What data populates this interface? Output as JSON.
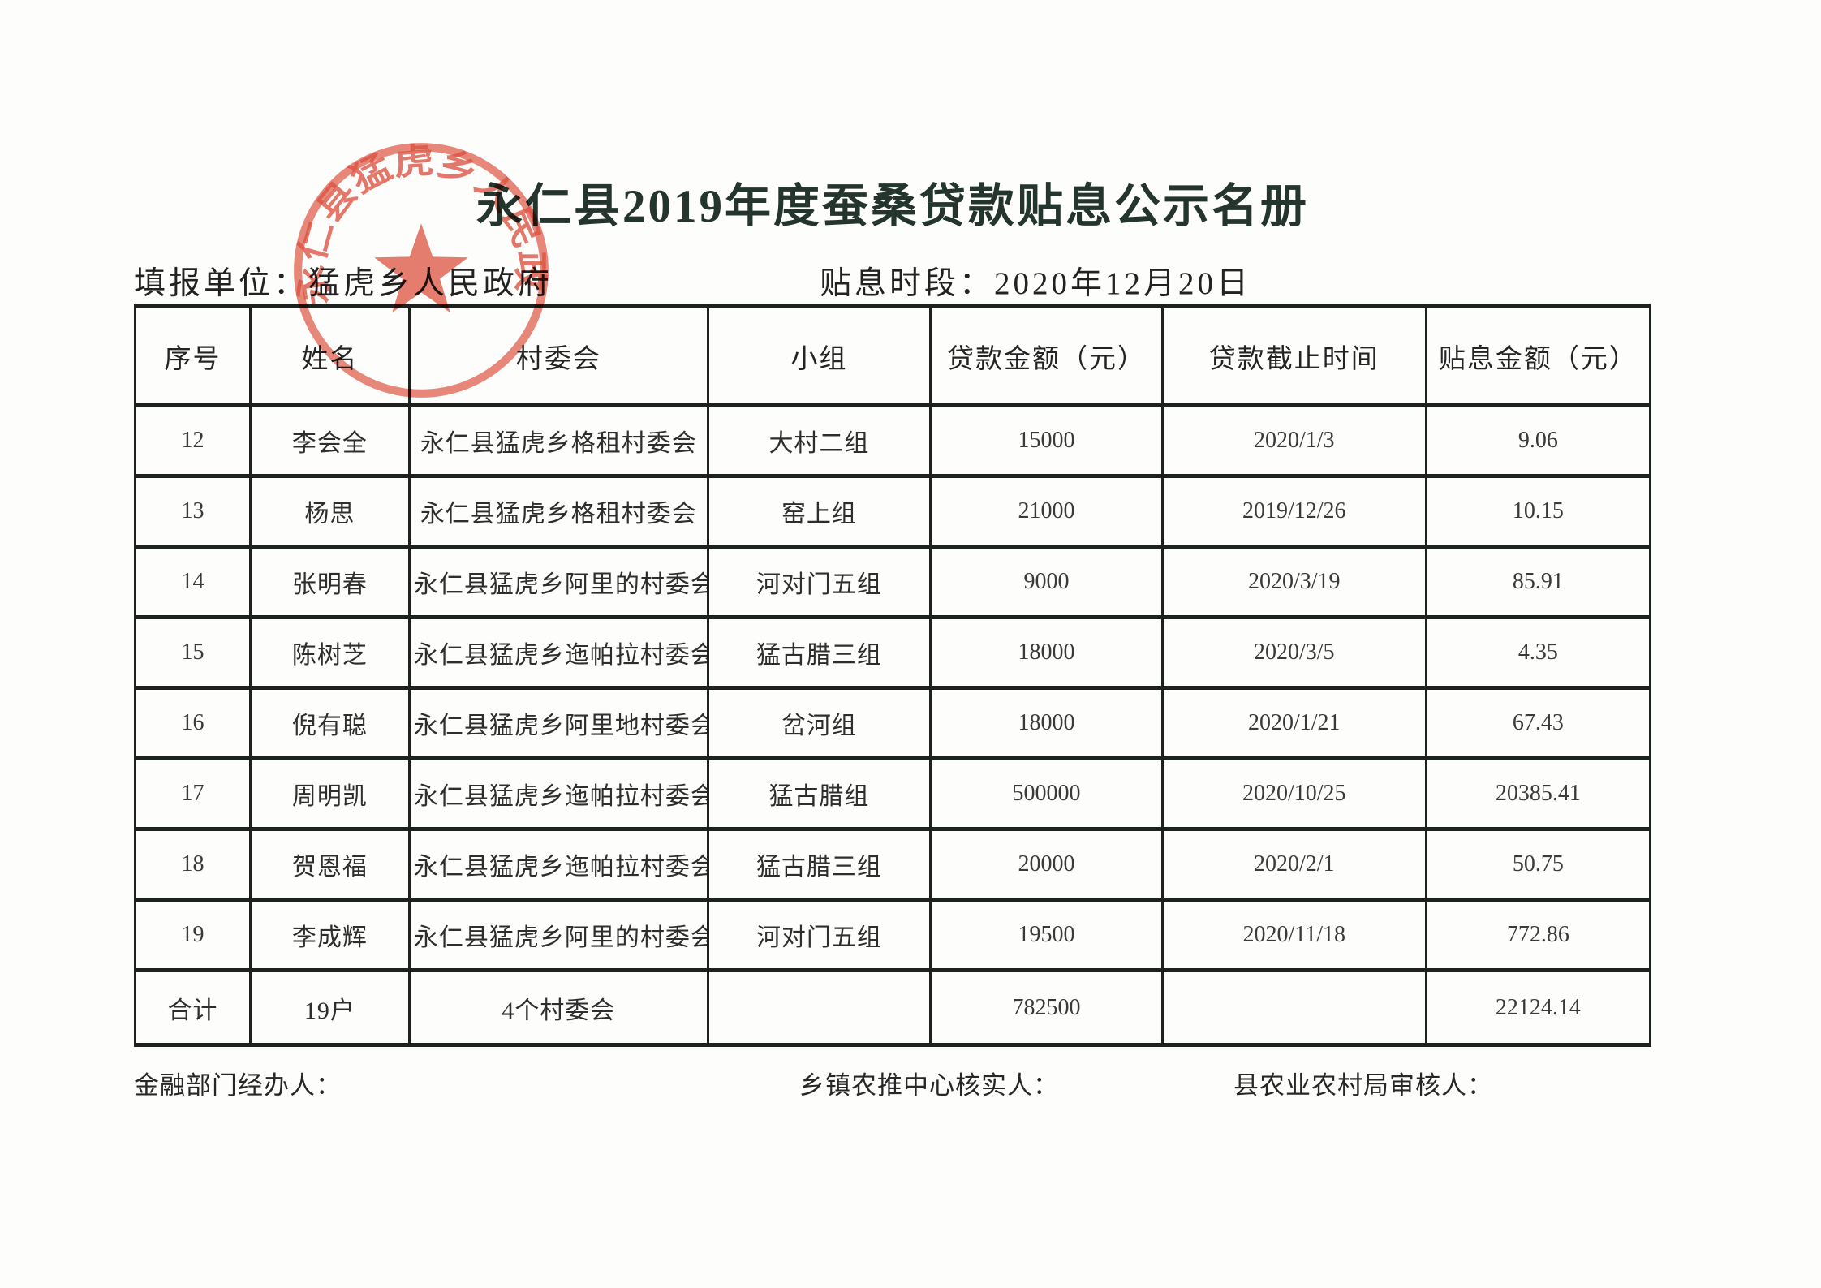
{
  "page": {
    "title": "永仁县2019年度蚕桑贷款贴息公示名册",
    "info": {
      "reporting_unit": "填报单位：猛虎乡人民政府",
      "subsidy_period": "贴息时段：2020年12月20日"
    }
  },
  "stamp": {
    "text": "永仁县猛虎乡人民政府",
    "color": "#e05a48"
  },
  "table": {
    "headers": [
      "序号",
      "姓名",
      "村委会",
      "小组",
      "贷款金额（元）",
      "贷款截止时间",
      "贴息金额（元）"
    ],
    "rows": [
      [
        "12",
        "李会全",
        "永仁县猛虎乡格租村委会",
        "大村二组",
        "15000",
        "2020/1/3",
        "9.06"
      ],
      [
        "13",
        "杨思",
        "永仁县猛虎乡格租村委会",
        "窑上组",
        "21000",
        "2019/12/26",
        "10.15"
      ],
      [
        "14",
        "张明春",
        "永仁县猛虎乡阿里的村委会",
        "河对门五组",
        "9000",
        "2020/3/19",
        "85.91"
      ],
      [
        "15",
        "陈树芝",
        "永仁县猛虎乡迤帕拉村委会",
        "猛古腊三组",
        "18000",
        "2020/3/5",
        "4.35"
      ],
      [
        "16",
        "倪有聪",
        "永仁县猛虎乡阿里地村委会",
        "岔河组",
        "18000",
        "2020/1/21",
        "67.43"
      ],
      [
        "17",
        "周明凯",
        "永仁县猛虎乡迤帕拉村委会",
        "猛古腊组",
        "500000",
        "2020/10/25",
        "20385.41"
      ],
      [
        "18",
        "贺恩福",
        "永仁县猛虎乡迤帕拉村委会",
        "猛古腊三组",
        "20000",
        "2020/2/1",
        "50.75"
      ],
      [
        "19",
        "李成辉",
        "永仁县猛虎乡阿里的村委会",
        "河对门五组",
        "19500",
        "2020/11/18",
        "772.86"
      ],
      [
        "合计",
        "19户",
        "4个村委会",
        "",
        "782500",
        "",
        "22124.14"
      ]
    ]
  },
  "footer": {
    "finance_officer": "金融部门经办人：",
    "township_verifier": "乡镇农推中心核实人：",
    "county_reviewer": "县农业农村局审核人："
  }
}
